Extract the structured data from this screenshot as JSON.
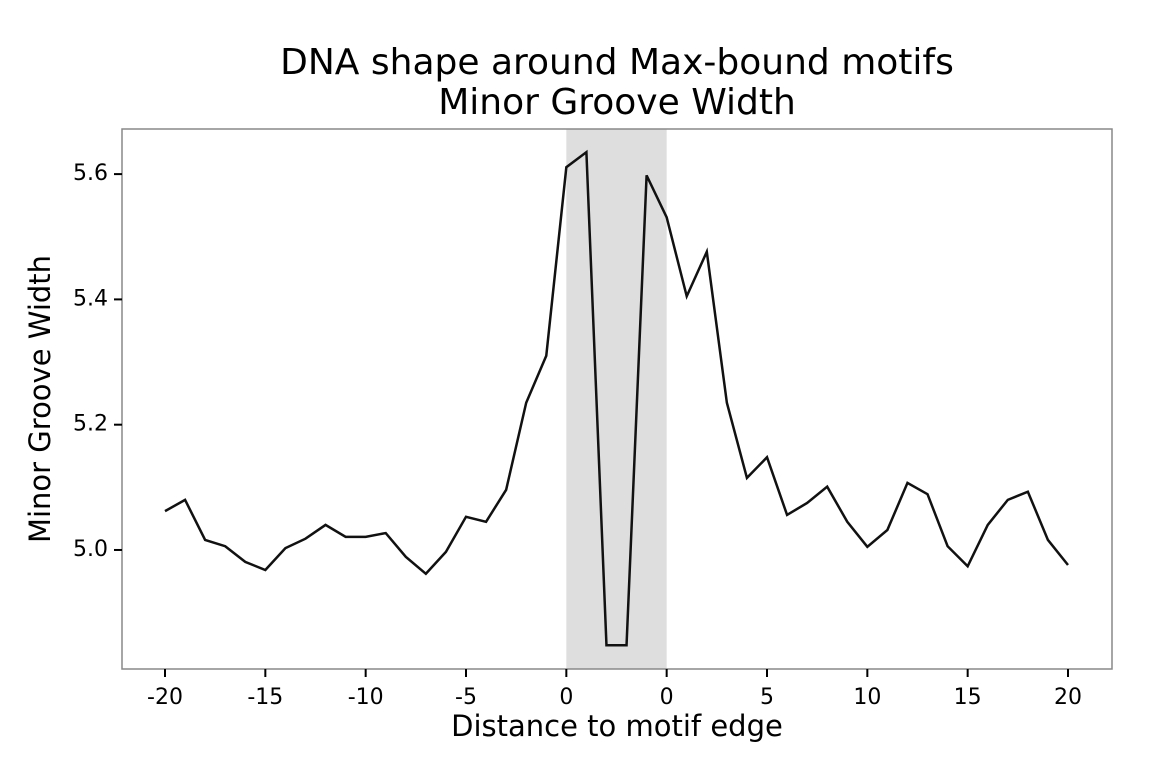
{
  "chart_data": {
    "type": "line",
    "title": "DNA shape around Max-bound motifs",
    "subtitle": "Minor Groove Width",
    "x_label": "Distance to motif edge",
    "y_label": "Minor Groove Width",
    "categories": [
      "-20",
      null,
      null,
      null,
      null,
      "-15",
      null,
      null,
      null,
      null,
      "-10",
      null,
      null,
      null,
      null,
      "-5",
      null,
      null,
      null,
      null,
      "0",
      null,
      null,
      null,
      null,
      "0",
      null,
      null,
      null,
      null,
      "5",
      null,
      null,
      null,
      null,
      "10",
      null,
      null,
      null,
      null,
      "15",
      null,
      null,
      null,
      null,
      "20"
    ],
    "series": [
      {
        "name": "Minor Groove Width",
        "color": "#111111",
        "values": [
          5.062,
          5.08,
          5.016,
          5.006,
          4.981,
          4.968,
          5.003,
          5.018,
          5.04,
          5.021,
          5.021,
          5.027,
          4.989,
          4.962,
          4.997,
          5.053,
          5.045,
          5.096,
          5.235,
          5.31,
          5.611,
          5.635,
          4.848,
          4.848,
          5.598,
          5.531,
          5.405,
          5.476,
          5.235,
          5.115,
          5.148,
          5.056,
          5.075,
          5.101,
          5.045,
          5.005,
          5.032,
          5.107,
          5.089,
          5.006,
          4.974,
          5.04,
          5.08,
          5.093,
          5.016,
          4.976
        ]
      }
    ],
    "shade_categories": [
      20,
      25
    ],
    "shade_color": "#dedede",
    "ylim": [
      4.81,
      5.672
    ],
    "yticks": [
      {
        "value": 5,
        "label": "5.0"
      },
      5.2,
      5.4,
      5.6
    ]
  }
}
